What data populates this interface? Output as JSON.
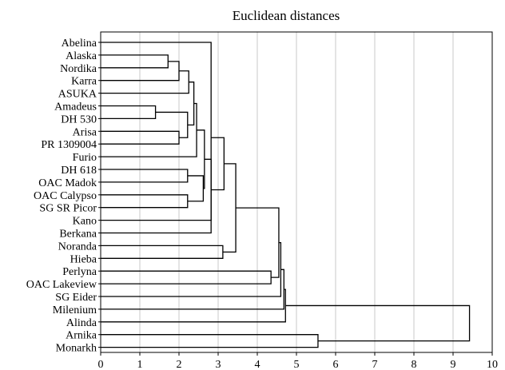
{
  "chart_data": {
    "type": "dendrogram",
    "title": "Euclidean distances",
    "xlim": [
      0,
      10
    ],
    "xticks": [
      0,
      1,
      2,
      3,
      4,
      5,
      6,
      7,
      8,
      9,
      10
    ],
    "grid": true,
    "leaves": [
      "Abelina",
      "Alaska",
      "Nordika",
      "Karra",
      "ASUKA",
      "Amadeus",
      "DH 530",
      "Arisa",
      "PR 1309004",
      "Furio",
      "DH 618",
      "OAC Madok",
      "OAC Calypso",
      "SG SR Picor",
      "Kano",
      "Berkana",
      "Noranda",
      "Hieba",
      "Perlyna",
      "OAC Lakeview",
      "SG Eider",
      "Milenium",
      "Alinda",
      "Arnika",
      "Monarkh"
    ],
    "merges": [
      {
        "a": "Alaska",
        "b": "Nordika",
        "d": 1.72
      },
      {
        "a": "Amadeus",
        "b": "DH 530",
        "d": 1.4
      },
      {
        "a": "Arisa",
        "b": "PR 1309004",
        "d": 2.0
      },
      {
        "a": "m0",
        "b": "Karra",
        "d": 2.0
      },
      {
        "a": "m1",
        "b": "m2",
        "d": 2.22
      },
      {
        "a": "m3",
        "b": "ASUKA",
        "d": 2.25
      },
      {
        "a": "m5",
        "b": "m4",
        "d": 2.38
      },
      {
        "a": "m6",
        "b": "Furio",
        "d": 2.45
      },
      {
        "a": "DH 618",
        "b": "OAC Madok",
        "d": 2.22
      },
      {
        "a": "OAC Calypso",
        "b": "SG SR Picor",
        "d": 2.22
      },
      {
        "a": "m8",
        "b": "m9",
        "d": 2.62
      },
      {
        "a": "m7",
        "b": "m10",
        "d": 2.65
      },
      {
        "a": "m11",
        "b": "Kano",
        "d": 2.82
      },
      {
        "a": "Abelina",
        "b": "Berkana",
        "d": 2.82
      },
      {
        "a": "m13",
        "b": "m12",
        "d": 3.15
      },
      {
        "a": "Noranda",
        "b": "Hieba",
        "d": 3.12
      },
      {
        "a": "m14",
        "b": "m15",
        "d": 3.45
      },
      {
        "a": "Perlyna",
        "b": "OAC Lakeview",
        "d": 4.35
      },
      {
        "a": "m16",
        "b": "m17",
        "d": 4.55
      },
      {
        "a": "m18",
        "b": "SG Eider",
        "d": 4.6
      },
      {
        "a": "m19",
        "b": "Milenium",
        "d": 4.68
      },
      {
        "a": "m20",
        "b": "Alinda",
        "d": 4.72
      },
      {
        "a": "Arnika",
        "b": "Monarkh",
        "d": 5.55
      },
      {
        "a": "m21",
        "b": "m22",
        "d": 9.42
      }
    ]
  }
}
